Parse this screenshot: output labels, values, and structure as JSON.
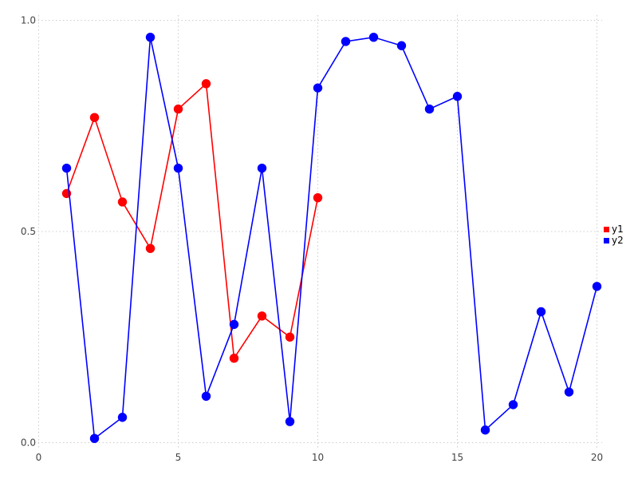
{
  "chart_data": {
    "type": "line",
    "title": "",
    "xlabel": "",
    "ylabel": "",
    "xlim": [
      -0.5,
      21
    ],
    "ylim": [
      0,
      1.0
    ],
    "x_tick_labels": [
      "0",
      "5",
      "10",
      "15",
      "20"
    ],
    "x_tick_values": [
      0,
      5,
      10,
      15,
      20
    ],
    "y_tick_labels": [
      "0.0",
      "0.5",
      "1.0"
    ],
    "y_tick_values": [
      0.0,
      0.5,
      1.0
    ],
    "grid": "dotted",
    "grid_color": "#cccccc",
    "tick_label_color": "#444444",
    "background_color": "#ffffff",
    "legend_position": "right-middle",
    "marker": "circle",
    "series": [
      {
        "name": "y1",
        "color": "#ff0000",
        "x": [
          1,
          2,
          3,
          4,
          5,
          6,
          7,
          8,
          9,
          10
        ],
        "values": [
          0.59,
          0.77,
          0.57,
          0.46,
          0.79,
          0.85,
          0.2,
          0.3,
          0.25,
          0.58
        ]
      },
      {
        "name": "y2",
        "color": "#0000ff",
        "x": [
          1,
          2,
          3,
          4,
          5,
          6,
          7,
          8,
          9,
          10,
          11,
          12,
          13,
          14,
          15,
          16,
          17,
          18,
          19,
          20
        ],
        "values": [
          0.65,
          0.01,
          0.06,
          0.96,
          0.65,
          0.11,
          0.28,
          0.65,
          0.05,
          0.84,
          0.95,
          0.96,
          0.94,
          0.79,
          0.82,
          0.03,
          0.09,
          0.31,
          0.12,
          0.37
        ]
      }
    ]
  }
}
